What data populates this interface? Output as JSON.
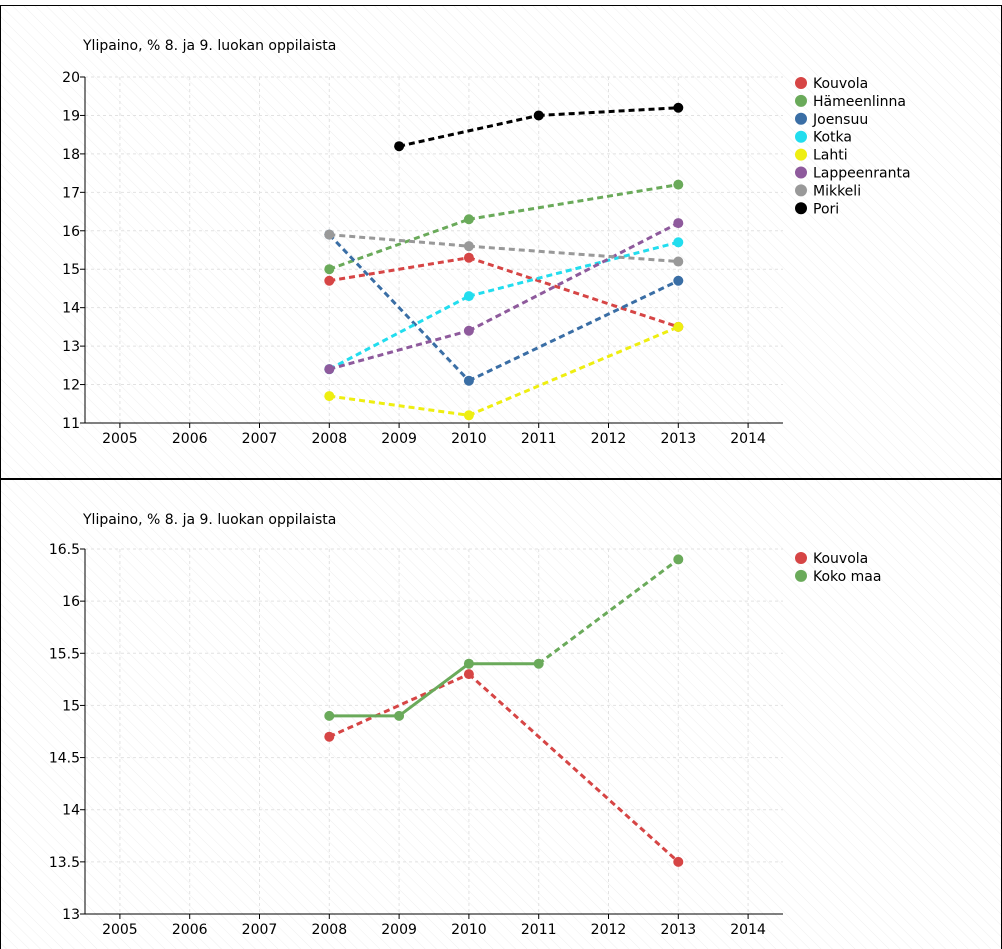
{
  "chart_data": [
    {
      "type": "line",
      "title": "Ylipaino, % 8. ja 9. luokan oppilaista",
      "xlabel": "",
      "ylabel": "",
      "x_ticks": [
        "2005",
        "2006",
        "2007",
        "2008",
        "2009",
        "2010",
        "2011",
        "2012",
        "2013",
        "2014"
      ],
      "y_ticks": [
        "20",
        "19",
        "18",
        "17",
        "16",
        "15",
        "14",
        "13",
        "12",
        "11"
      ],
      "xlim": [
        2004.5,
        2014.5
      ],
      "ylim": [
        11,
        20
      ],
      "grid": true,
      "legend_position": "right",
      "series": [
        {
          "name": "Kouvola",
          "color": "#d64545",
          "style": "dashed",
          "x": [
            2008,
            2010,
            2013
          ],
          "values": [
            14.7,
            15.3,
            13.5
          ]
        },
        {
          "name": "Hämeenlinna",
          "color": "#6aaa5a",
          "style": "dashed",
          "x": [
            2008,
            2010,
            2013
          ],
          "values": [
            15.0,
            16.3,
            17.2
          ]
        },
        {
          "name": "Joensuu",
          "color": "#3a6ea5",
          "style": "dashed",
          "x": [
            2008,
            2010,
            2013
          ],
          "values": [
            15.9,
            12.1,
            14.7
          ]
        },
        {
          "name": "Kotka",
          "color": "#22ddee",
          "style": "dashed",
          "x": [
            2008,
            2010,
            2013
          ],
          "values": [
            12.4,
            14.3,
            15.7
          ]
        },
        {
          "name": "Lahti",
          "color": "#eeee11",
          "style": "dashed",
          "x": [
            2008,
            2010,
            2013
          ],
          "values": [
            11.7,
            11.2,
            13.5
          ]
        },
        {
          "name": "Lappeenranta",
          "color": "#8e5a9c",
          "style": "dashed",
          "x": [
            2008,
            2010,
            2013
          ],
          "values": [
            12.4,
            13.4,
            16.2
          ]
        },
        {
          "name": "Mikkeli",
          "color": "#999999",
          "style": "dashed",
          "x": [
            2008,
            2010,
            2013
          ],
          "values": [
            15.9,
            15.6,
            15.2
          ]
        },
        {
          "name": "Pori",
          "color": "#000000",
          "style": "dashed",
          "x": [
            2009,
            2011,
            2013
          ],
          "values": [
            18.2,
            19.0,
            19.2
          ]
        }
      ]
    },
    {
      "type": "line",
      "title": "Ylipaino, % 8. ja 9. luokan oppilaista",
      "xlabel": "",
      "ylabel": "",
      "x_ticks": [
        "2005",
        "2006",
        "2007",
        "2008",
        "2009",
        "2010",
        "2011",
        "2012",
        "2013",
        "2014"
      ],
      "y_ticks": [
        "16.5",
        "16",
        "15.5",
        "15",
        "14.5",
        "14",
        "13.5",
        "13"
      ],
      "xlim": [
        2004.5,
        2014.5
      ],
      "ylim": [
        13,
        16.5
      ],
      "grid": true,
      "legend_position": "right",
      "series": [
        {
          "name": "Kouvola",
          "color": "#d64545",
          "style": "dashed",
          "x": [
            2008,
            2010,
            2013
          ],
          "values": [
            14.7,
            15.3,
            13.5
          ]
        },
        {
          "name": "Koko maa",
          "color": "#6aaa5a",
          "style": "mixed",
          "x": [
            2008,
            2009,
            2010,
            2011,
            2013
          ],
          "values": [
            14.9,
            14.9,
            15.4,
            15.4,
            16.4
          ],
          "solid_through_index": 3
        }
      ]
    }
  ]
}
